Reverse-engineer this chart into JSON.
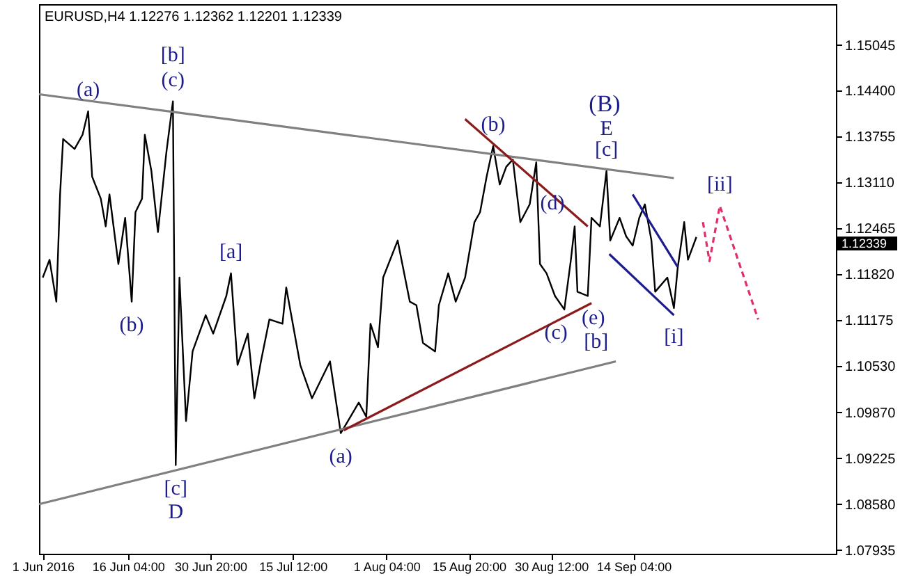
{
  "chart_data": {
    "type": "line",
    "title": "EURUSD,H4 1.12276 1.12362 1.12201 1.12339",
    "xlim": [
      "2016-05-31T08:00",
      "2016-10-20T04:00"
    ],
    "xticks": [
      {
        "value": "2016-06-01T00:00",
        "label": "1 Jun 2016"
      },
      {
        "value": "2016-06-16T04:00",
        "label": "16 Jun 04:00"
      },
      {
        "value": "2016-06-30T20:00",
        "label": "30 Jun 20:00"
      },
      {
        "value": "2016-07-15T12:00",
        "label": "15 Jul 12:00"
      },
      {
        "value": "2016-08-01T04:00",
        "label": "1 Aug 04:00"
      },
      {
        "value": "2016-08-15T20:00",
        "label": "15 Aug 20:00"
      },
      {
        "value": "2016-08-30T12:00",
        "label": "30 Aug 12:00"
      },
      {
        "value": "2016-09-14T04:00",
        "label": "14 Sep 04:00"
      }
    ],
    "ylim": [
      1.07882,
      1.15618
    ],
    "yticks": [
      1.07935,
      {
        "value": 1.0858,
        "label": "1.08580"
      },
      1.09225,
      {
        "value": 1.0987,
        "label": "1.09870"
      },
      {
        "value": 1.1053,
        "label": "1.10530"
      },
      1.11175,
      {
        "value": 1.1182,
        "label": "1.11820"
      },
      1.12465,
      {
        "value": 1.1311,
        "label": "1.13110"
      },
      1.13755,
      {
        "value": 1.144,
        "label": "1.14400"
      },
      1.15045
    ],
    "grid": false,
    "marker": "none",
    "series": [
      {
        "color": "#000000",
        "line_style": "solid",
        "x": [
          "2016-06-01T00:00",
          "2016-06-02T05:00",
          "2016-06-03T10:00",
          "2016-06-04T02:00",
          "2016-06-04T15:00",
          "2016-06-06T16:00",
          "2016-06-08T02:00",
          "2016-06-09T02:00",
          "2016-06-09T19:00",
          "2016-06-11T08:00",
          "2016-06-12T05:00",
          "2016-06-12T21:00",
          "2016-06-14T11:00",
          "2016-06-15T16:00",
          "2016-06-16T20:00",
          "2016-06-17T12:00",
          "2016-06-18T16:00",
          "2016-06-19T04:00",
          "2016-06-20T08:00",
          "2016-06-21T12:00",
          "2016-06-23T00:00",
          "2016-06-24T04:00",
          "2016-06-24T16:00",
          "2016-06-25T08:00",
          "2016-06-26T12:00",
          "2016-06-27T16:00",
          "2016-06-30T00:00",
          "2016-07-01T08:00",
          "2016-07-03T16:00",
          "2016-07-04T12:00",
          "2016-07-05T16:00",
          "2016-07-07T12:00",
          "2016-07-08T16:00",
          "2016-07-09T20:00",
          "2016-07-11T08:00",
          "2016-07-13T16:00",
          "2016-07-14T08:00",
          "2016-07-15T12:00",
          "2016-07-16T20:00",
          "2016-07-18T22:00",
          "2016-07-22T03:00",
          "2016-07-24T01:00",
          "2016-07-27T06:00",
          "2016-07-28T14:00",
          "2016-07-29T08:00",
          "2016-07-30T16:00",
          "2016-07-31T14:00",
          "2016-08-03T04:00",
          "2016-08-05T08:00",
          "2016-08-06T12:00",
          "2016-08-07T16:00",
          "2016-08-09T20:00",
          "2016-08-10T12:00",
          "2016-08-12T04:00",
          "2016-08-13T12:00",
          "2016-08-15T04:00",
          "2016-08-16T20:00",
          "2016-08-17T20:00",
          "2016-08-19T00:00",
          "2016-08-20T04:00",
          "2016-08-21T08:00",
          "2016-08-22T12:00",
          "2016-08-23T16:00",
          "2016-08-25T00:00",
          "2016-08-26T16:00",
          "2016-08-27T20:00",
          "2016-08-28T12:00",
          "2016-08-29T16:00",
          "2016-08-31T04:00",
          "2016-09-01T20:00",
          "2016-09-03T00:00",
          "2016-09-03T16:00",
          "2016-09-04T04:00",
          "2016-09-06T00:00",
          "2016-09-06T16:00",
          "2016-09-08T04:00",
          "2016-09-09T08:00",
          "2016-09-10T00:00",
          "2016-09-11T16:00",
          "2016-09-12T20:00",
          "2016-09-14T00:00",
          "2016-09-15T04:00",
          "2016-09-16T04:00",
          "2016-09-17T08:00",
          "2016-09-18T00:00",
          "2016-09-20T04:00",
          "2016-09-21T08:00",
          "2016-09-22T00:00",
          "2016-09-23T04:00",
          "2016-09-23T20:00",
          "2016-09-25T08:00"
        ],
        "values": [
          1.1177,
          1.1202,
          1.1143,
          1.1294,
          1.1372,
          1.1358,
          1.1378,
          1.1411,
          1.1319,
          1.1288,
          1.1249,
          1.1294,
          1.1196,
          1.1261,
          1.1143,
          1.1269,
          1.1288,
          1.1378,
          1.1327,
          1.1241,
          1.1353,
          1.1425,
          1.0913,
          1.1177,
          1.0975,
          1.1073,
          1.1124,
          1.1098,
          1.1151,
          1.1183,
          1.1054,
          1.1098,
          1.1007,
          1.1059,
          1.1118,
          1.1112,
          1.1163,
          1.1112,
          1.1054,
          1.1007,
          1.1059,
          1.0958,
          1.1001,
          1.0981,
          1.1112,
          1.1079,
          1.1177,
          1.1229,
          1.1143,
          1.1138,
          1.1085,
          1.1073,
          1.1138,
          1.1183,
          1.1143,
          1.1177,
          1.1255,
          1.1269,
          1.1319,
          1.1362,
          1.1308,
          1.1333,
          1.1343,
          1.1255,
          1.128,
          1.1339,
          1.1196,
          1.1183,
          1.1151,
          1.1132,
          1.1202,
          1.1249,
          1.1157,
          1.1151,
          1.1261,
          1.1249,
          1.1327,
          1.1229,
          1.1261,
          1.1235,
          1.1222,
          1.1261,
          1.128,
          1.1229,
          1.1157,
          1.1177,
          1.1134,
          1.119,
          1.1255,
          1.1202,
          1.1234
        ]
      },
      {
        "color": "#808080",
        "line_style": "solid",
        "x": [
          "2016-05-31T08:00",
          "2016-09-21T08:00"
        ],
        "values": [
          1.1435,
          1.1317
        ]
      },
      {
        "color": "#808080",
        "line_style": "solid",
        "x": [
          "2016-05-31T08:00",
          "2016-09-11T00:00"
        ],
        "values": [
          1.0858,
          1.1059
        ]
      },
      {
        "color": "#8b1a1a",
        "line_style": "solid",
        "x": [
          "2016-08-15T04:00",
          "2016-09-06T00:00"
        ],
        "values": [
          1.14,
          1.1249
        ]
      },
      {
        "color": "#8b1a1a",
        "line_style": "solid",
        "x": [
          "2016-07-24T14:00",
          "2016-09-06T16:00"
        ],
        "values": [
          1.0962,
          1.1141
        ]
      },
      {
        "color": "#1c1c8c",
        "line_style": "solid",
        "x": [
          "2016-09-14T00:00",
          "2016-09-22T00:00"
        ],
        "values": [
          1.1294,
          1.1192
        ]
      },
      {
        "color": "#1c1c8c",
        "line_style": "solid",
        "x": [
          "2016-09-09T20:00",
          "2016-09-21T08:00"
        ],
        "values": [
          1.121,
          1.1124
        ]
      },
      {
        "color": "#e0306a",
        "line_style": "dashed",
        "x": [
          "2016-09-26T12:00",
          "2016-09-27T16:00",
          "2016-09-29T12:00",
          "2016-10-06T08:00"
        ],
        "values": [
          1.1255,
          1.12,
          1.1278,
          1.1118
        ]
      }
    ],
    "annotations": [
      {
        "text": "(a)",
        "x": "2016-06-09T02:00",
        "y": 1.1411
      },
      {
        "text": "[b]",
        "x": "2016-06-24T04:00",
        "y": 1.1425
      },
      {
        "text": "(c)",
        "x": "2016-06-24T04:00",
        "y": 1.1425
      },
      {
        "text": "(b)",
        "x": "2016-06-16T20:00",
        "y": 1.1143
      },
      {
        "text": "[a]",
        "x": "2016-07-04T12:00",
        "y": 1.1183
      },
      {
        "text": "[c]",
        "x": "2016-06-24T16:00",
        "y": 1.0913
      },
      {
        "text": "D",
        "x": "2016-06-24T16:00",
        "y": 1.0913
      },
      {
        "text": "(a)",
        "x": "2016-07-24T01:00",
        "y": 1.0958
      },
      {
        "text": "(b)",
        "x": "2016-08-20T04:00",
        "y": 1.1362
      },
      "(B)",
      {
        "text": "E",
        "x": "2016-09-09T08:00",
        "y": 1.1327
      },
      {
        "text": "[c]",
        "x": "2016-09-09T08:00",
        "y": 1.1327
      },
      {
        "text": "(d)",
        "x": "2016-09-03T16:00",
        "y": 1.1249
      },
      {
        "text": "(c)",
        "x": "2016-09-01T20:00",
        "y": 1.1132
      },
      {
        "text": "(e)",
        "x": "2016-09-06T00:00",
        "y": 1.1151
      },
      {
        "text": "[b]",
        "x": "2016-09-06T00:00",
        "y": 1.1151
      },
      {
        "text": "[i]",
        "x": "2016-09-21T08:00",
        "y": 1.1134
      },
      {
        "text": "[ii]",
        "x": "2016-09-29T12:00",
        "y": 1.1278
      },
      "1.12339"
    ]
  }
}
